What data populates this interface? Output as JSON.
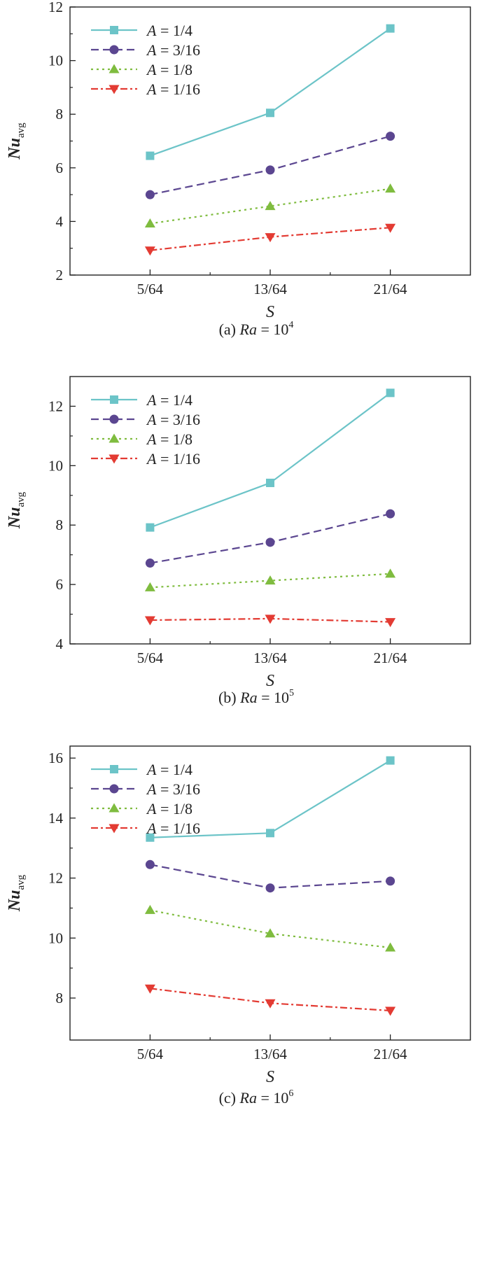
{
  "chart_data": [
    {
      "type": "line",
      "caption": {
        "prefix": "(a) ",
        "var": "Ra",
        "eq": " = 10",
        "exp": "4"
      },
      "xlabel": "S",
      "ylabel": {
        "main": "Nu",
        "sub": "avg"
      },
      "categories": [
        "5/64",
        "13/64",
        "21/64"
      ],
      "ylim": [
        2,
        12
      ],
      "yticks": [
        "2",
        "4",
        "6",
        "8",
        "10",
        "12"
      ],
      "legend_position": "top-left",
      "series": [
        {
          "name": "1/4",
          "values": [
            6.45,
            8.05,
            11.2
          ],
          "color": "#6cc4c8",
          "marker": "square",
          "dash": "solid"
        },
        {
          "name": "3/16",
          "values": [
            5.0,
            5.92,
            7.18
          ],
          "color": "#5b4690",
          "marker": "circle",
          "dash": "dash"
        },
        {
          "name": "1/8",
          "values": [
            3.92,
            4.57,
            5.22
          ],
          "color": "#7fbc3f",
          "marker": "triangle-up",
          "dash": "dot"
        },
        {
          "name": "1/16",
          "values": [
            2.92,
            3.42,
            3.77
          ],
          "color": "#e33b33",
          "marker": "triangle-down",
          "dash": "dashdot"
        }
      ]
    },
    {
      "type": "line",
      "caption": {
        "prefix": "(b) ",
        "var": "Ra",
        "eq": " = 10",
        "exp": "5"
      },
      "xlabel": "S",
      "ylabel": {
        "main": "Nu",
        "sub": "avg"
      },
      "categories": [
        "5/64",
        "13/64",
        "21/64"
      ],
      "ylim": [
        4,
        13
      ],
      "yticks": [
        "4",
        "6",
        "8",
        "10",
        "12"
      ],
      "legend_position": "top-left",
      "series": [
        {
          "name": "1/4",
          "values": [
            7.92,
            9.42,
            12.45
          ],
          "color": "#6cc4c8",
          "marker": "square",
          "dash": "solid"
        },
        {
          "name": "3/16",
          "values": [
            6.72,
            7.42,
            8.38
          ],
          "color": "#5b4690",
          "marker": "circle",
          "dash": "dash"
        },
        {
          "name": "1/8",
          "values": [
            5.9,
            6.13,
            6.36
          ],
          "color": "#7fbc3f",
          "marker": "triangle-up",
          "dash": "dot"
        },
        {
          "name": "1/16",
          "values": [
            4.8,
            4.85,
            4.74
          ],
          "color": "#e33b33",
          "marker": "triangle-down",
          "dash": "dashdot"
        }
      ]
    },
    {
      "type": "line",
      "caption": {
        "prefix": "(c) ",
        "var": "Ra",
        "eq": " = 10",
        "exp": "6"
      },
      "xlabel": "S",
      "ylabel": {
        "main": "Nu",
        "sub": "avg"
      },
      "categories": [
        "5/64",
        "13/64",
        "21/64"
      ],
      "ylim": [
        6.6,
        16.4
      ],
      "yticks": [
        "8",
        "10",
        "12",
        "14",
        "16"
      ],
      "legend_position": "top-left",
      "series": [
        {
          "name": "1/4",
          "values": [
            13.35,
            13.5,
            15.92
          ],
          "color": "#6cc4c8",
          "marker": "square",
          "dash": "solid"
        },
        {
          "name": "3/16",
          "values": [
            12.45,
            11.67,
            11.9
          ],
          "color": "#5b4690",
          "marker": "circle",
          "dash": "dash"
        },
        {
          "name": "1/8",
          "values": [
            10.93,
            10.15,
            9.68
          ],
          "color": "#7fbc3f",
          "marker": "triangle-up",
          "dash": "dot"
        },
        {
          "name": "1/16",
          "values": [
            8.32,
            7.83,
            7.58
          ],
          "color": "#e33b33",
          "marker": "triangle-down",
          "dash": "dashdot"
        }
      ]
    }
  ],
  "legend_symbol": "A",
  "legend_eq": " = "
}
